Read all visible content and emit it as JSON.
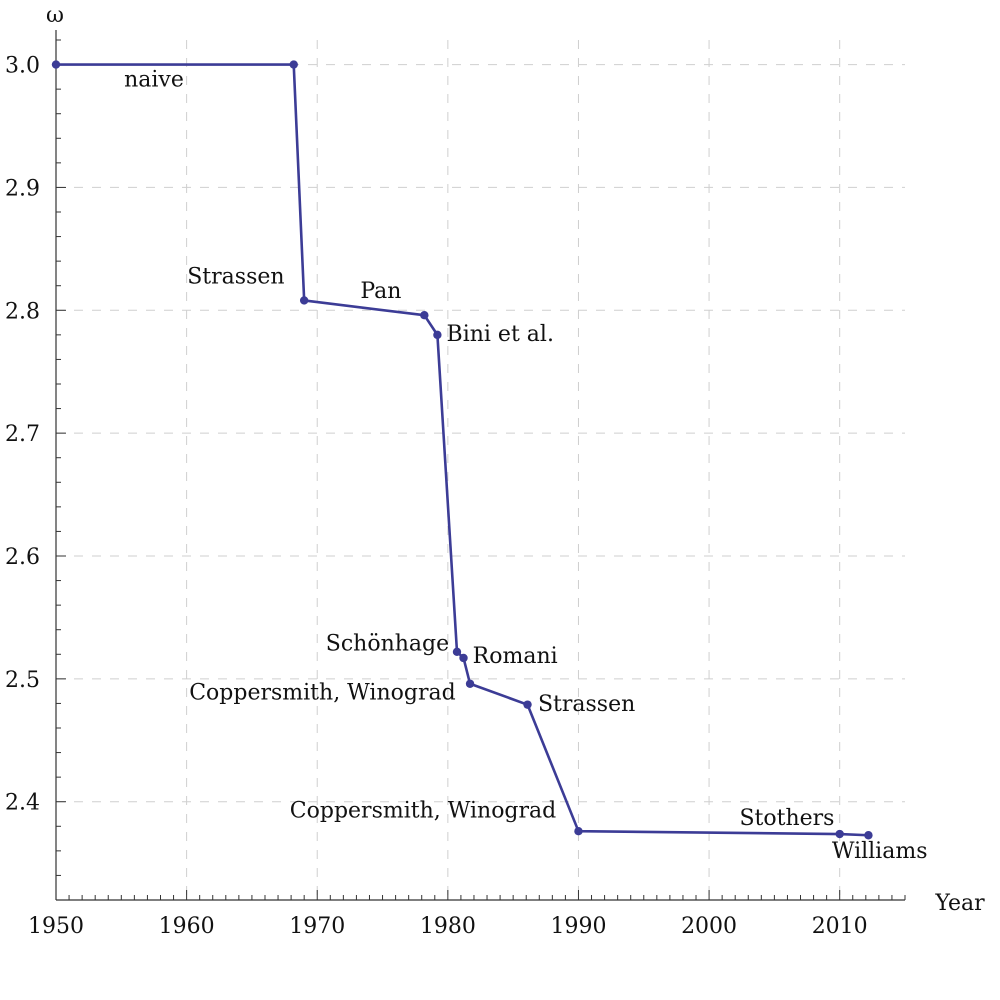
{
  "chart_data": {
    "type": "line",
    "title": "",
    "xlabel": "Year",
    "ylabel": "ω",
    "xlim": [
      1950,
      2015
    ],
    "ylim": [
      2.32,
      3.02
    ],
    "x_ticks": [
      1950,
      1960,
      1970,
      1980,
      1990,
      2000,
      2010
    ],
    "x_tick_labels": [
      "1950",
      "1960",
      "1970",
      "1980",
      "1990",
      "2000",
      "2010"
    ],
    "y_ticks": [
      2.4,
      2.5,
      2.6,
      2.7,
      2.8,
      2.9,
      3.0
    ],
    "y_tick_labels": [
      "2.4",
      "2.5",
      "2.6",
      "2.7",
      "2.8",
      "2.9",
      "3.0"
    ],
    "grid": true,
    "grid_style": "dashed",
    "line_color": "#3c3c96",
    "series": [
      {
        "points": [
          {
            "x": 1950,
            "y": 3.0,
            "label": ""
          },
          {
            "x": 1968.2,
            "y": 3.0,
            "label": ""
          },
          {
            "x": 1969,
            "y": 2.808,
            "label": "Strassen"
          },
          {
            "x": 1978.2,
            "y": 2.796,
            "label": "Pan"
          },
          {
            "x": 1979.2,
            "y": 2.78,
            "label": "Bini et al."
          },
          {
            "x": 1980.7,
            "y": 2.522,
            "label": "Schönhage"
          },
          {
            "x": 1981.2,
            "y": 2.517,
            "label": "Romani"
          },
          {
            "x": 1981.7,
            "y": 2.496,
            "label": "Coppersmith, Winograd"
          },
          {
            "x": 1986.1,
            "y": 2.479,
            "label": "Strassen"
          },
          {
            "x": 1990,
            "y": 2.376,
            "label": "Coppersmith, Winograd"
          },
          {
            "x": 2010,
            "y": 2.3737,
            "label": "Stothers"
          },
          {
            "x": 2012.2,
            "y": 2.3727,
            "label": "Williams"
          }
        ]
      }
    ],
    "annotations": [
      {
        "text": "naive",
        "x": 1957.5,
        "y": 2.982,
        "anchor": "middle"
      },
      {
        "text": "Strassen",
        "x": 1967.5,
        "y": 2.822,
        "anchor": "end"
      },
      {
        "text": "Pan",
        "x": 1973.3,
        "y": 2.81,
        "anchor": "start"
      },
      {
        "text": "Bini et al.",
        "x": 1979.9,
        "y": 2.775,
        "anchor": "start"
      },
      {
        "text": "Schönhage",
        "x": 1980.1,
        "y": 2.523,
        "anchor": "end"
      },
      {
        "text": "Romani",
        "x": 1981.9,
        "y": 2.513,
        "anchor": "start"
      },
      {
        "text": "Coppersmith, Winograd",
        "x": 1980.6,
        "y": 2.483,
        "anchor": "end"
      },
      {
        "text": "Strassen",
        "x": 1986.9,
        "y": 2.474,
        "anchor": "start"
      },
      {
        "text": "Coppersmith, Winograd",
        "x": 1988.3,
        "y": 2.387,
        "anchor": "end"
      },
      {
        "text": "Stothers",
        "x": 2009.6,
        "y": 2.381,
        "anchor": "end"
      },
      {
        "text": "Williams",
        "x": 2009.4,
        "y": 2.354,
        "anchor": "start"
      }
    ]
  }
}
